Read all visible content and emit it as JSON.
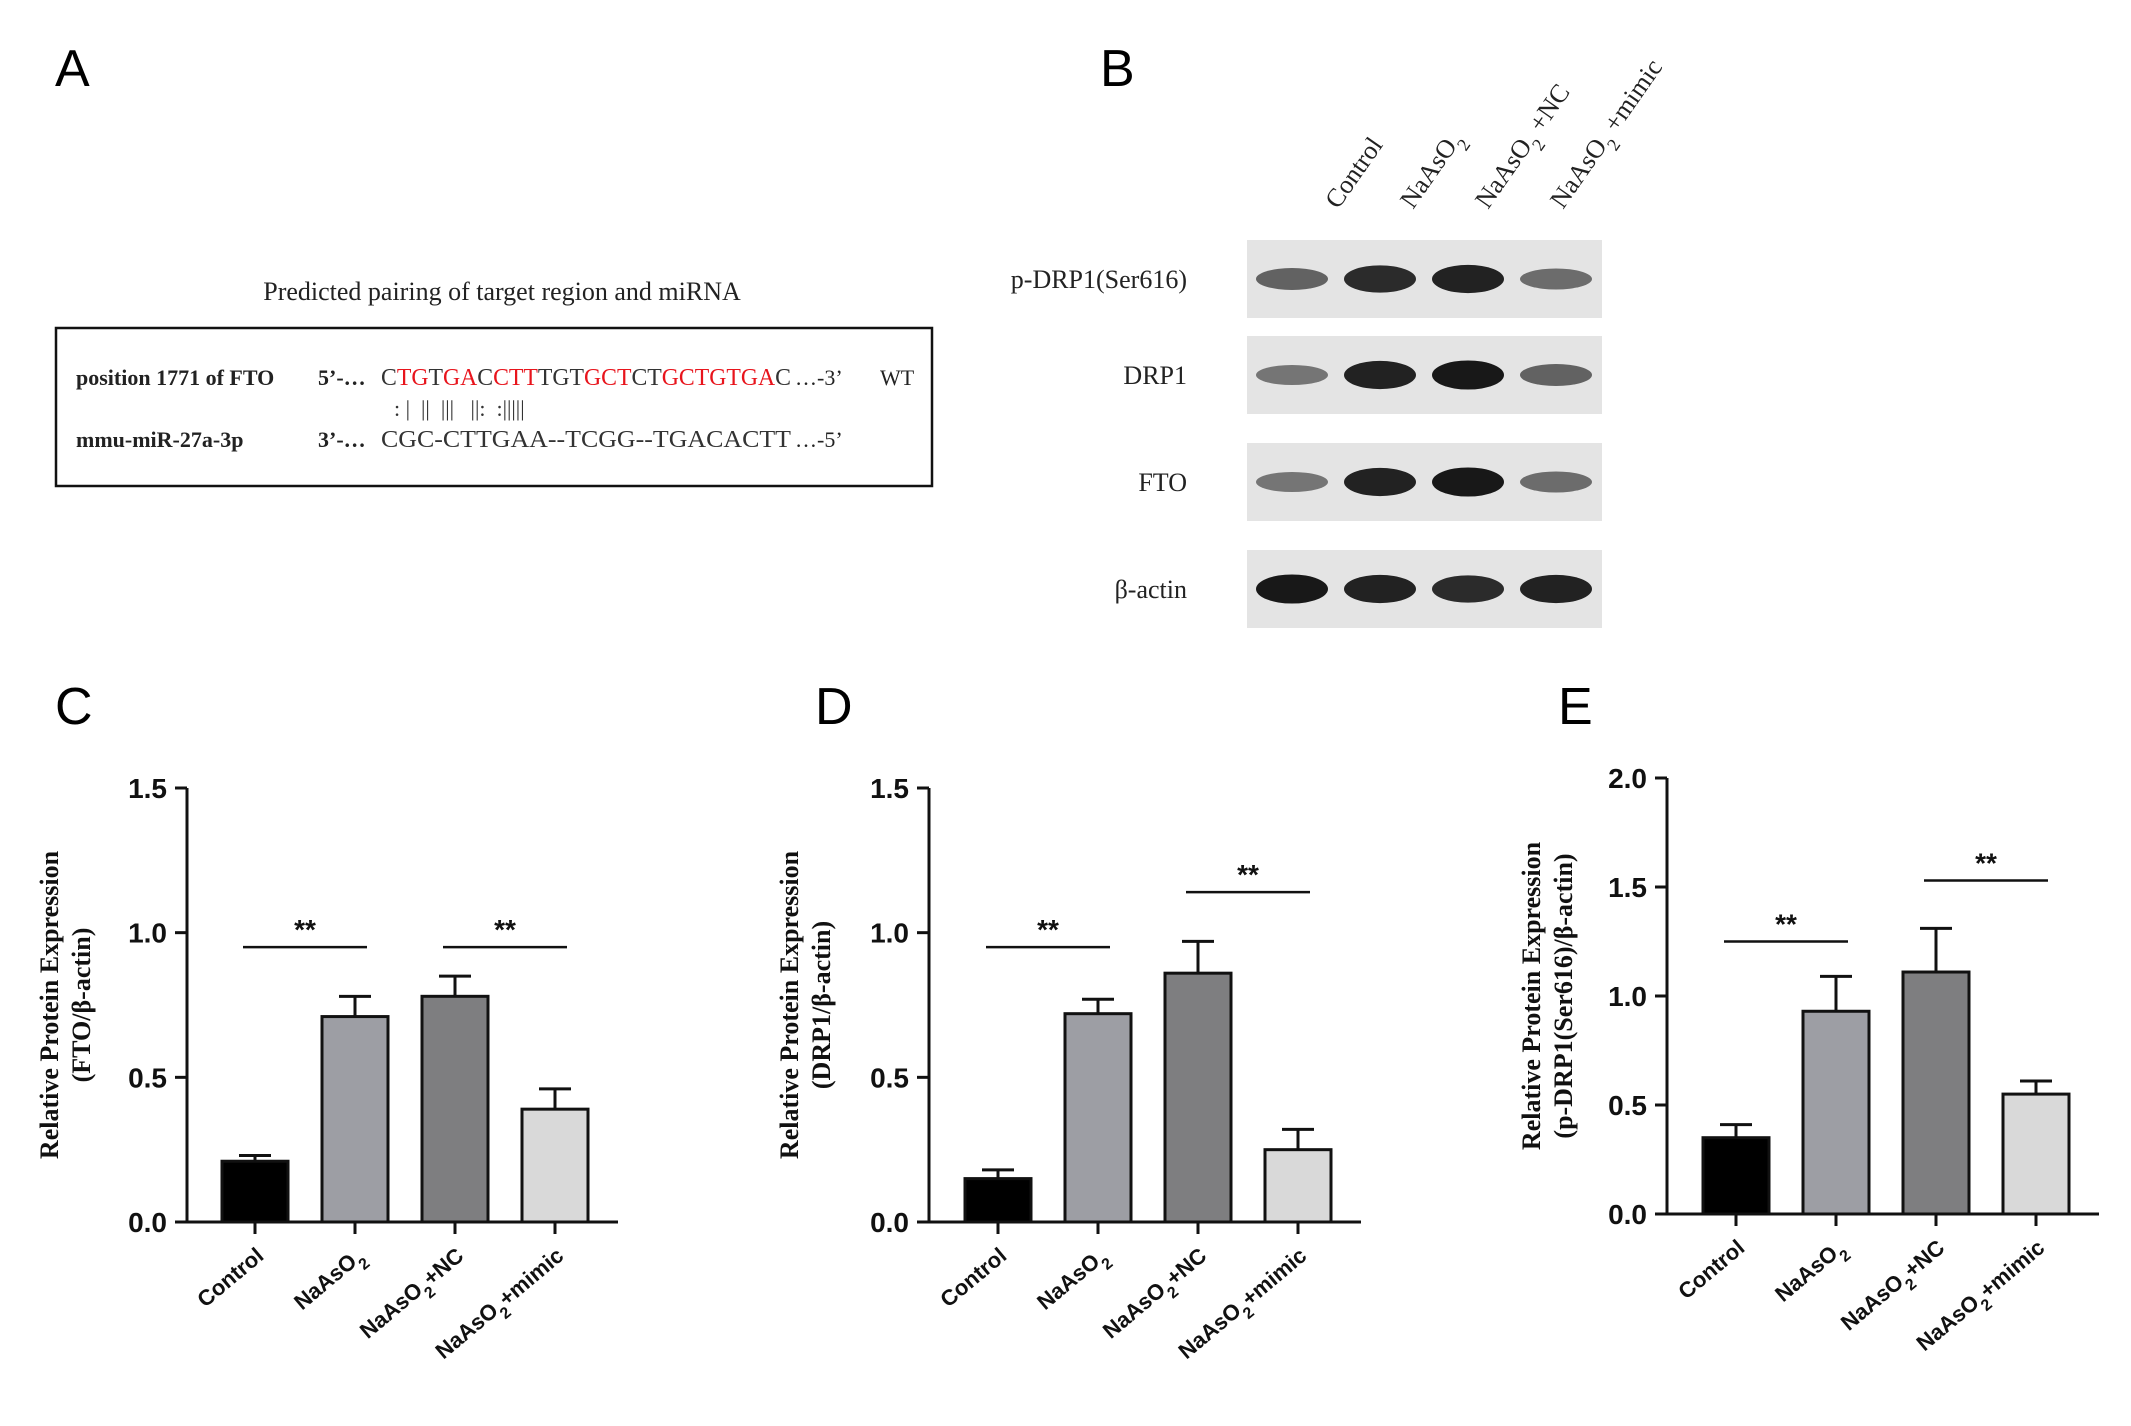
{
  "panels": {
    "A": "A",
    "B": "B",
    "C": "C",
    "D": "D",
    "E": "E"
  },
  "panel_a": {
    "title": "Predicted pairing of target region and miRNA",
    "target_label": "position 1771 of FTO",
    "mirna_label": "mmu-miR-27a-3p",
    "target_prefix": "5’-…",
    "target_suffix": "…-3’",
    "mirna_prefix": "3’-…",
    "mirna_suffix": "…-5’",
    "wt_label": "WT",
    "target_segments": [
      {
        "text": "C",
        "red": false
      },
      {
        "text": "TG",
        "red": true
      },
      {
        "text": "T",
        "red": false
      },
      {
        "text": "GA",
        "red": true
      },
      {
        "text": "C",
        "red": false
      },
      {
        "text": "CTT",
        "red": true
      },
      {
        "text": "TGT",
        "red": false
      },
      {
        "text": "GCT",
        "red": true
      },
      {
        "text": "CT",
        "red": false
      },
      {
        "text": "GCTGTGA",
        "red": true
      },
      {
        "text": "C",
        "red": false
      }
    ],
    "pairing": ": |  ||  |||   ||:  :|||||",
    "mirna_sequence": "CGC-CTTGAA--TCGG--TGACACTT"
  },
  "panel_b": {
    "lanes": [
      "Control",
      "NaAsO",
      "NaAsO",
      "NaAsO"
    ],
    "lane_subscripts": [
      "",
      "2",
      "2",
      "2"
    ],
    "lane_suffixes": [
      "",
      "",
      " +NC",
      " +mimic"
    ],
    "blots": [
      {
        "label": "p-DRP1(Ser616)",
        "intensity": [
          0.55,
          0.85,
          0.9,
          0.5
        ]
      },
      {
        "label": "DRP1",
        "intensity": [
          0.45,
          0.9,
          0.95,
          0.55
        ]
      },
      {
        "label": "FTO",
        "intensity": [
          0.45,
          0.9,
          0.95,
          0.5
        ]
      },
      {
        "label": "β-actin",
        "intensity": [
          0.95,
          0.9,
          0.85,
          0.9
        ]
      }
    ]
  },
  "colors": {
    "control": "#000000",
    "naaso2": "#9d9ea4",
    "naaso2_nc": "#7e7e80",
    "naaso2_mimic": "#d9d9d9",
    "red_seq": "#e8141c"
  },
  "chart_data": [
    {
      "type": "bar",
      "panel": "C",
      "categories": [
        "Control",
        "NaAsO2",
        "NaAsO2+NC",
        "NaAsO2+mimic"
      ],
      "values": [
        0.21,
        0.71,
        0.78,
        0.39
      ],
      "errors": [
        0.02,
        0.07,
        0.07,
        0.07
      ],
      "ylabel_line1": "Relative Protein Expression",
      "ylabel_line2": "(FTO/β-actin)",
      "ylim": [
        0,
        1.5
      ],
      "yticks": [
        "0.0",
        "0.5",
        "1.0",
        "1.5"
      ],
      "yticks_values": [
        0,
        0.5,
        1.0,
        1.5
      ],
      "significance": [
        {
          "pair": [
            0,
            1
          ],
          "label": "**",
          "y": 0.95
        },
        {
          "pair": [
            2,
            3
          ],
          "label": "**",
          "y": 0.95
        }
      ]
    },
    {
      "type": "bar",
      "panel": "D",
      "categories": [
        "Control",
        "NaAsO2",
        "NaAsO2+NC",
        "NaAsO2+mimic"
      ],
      "values": [
        0.15,
        0.72,
        0.86,
        0.25
      ],
      "errors": [
        0.03,
        0.05,
        0.11,
        0.07
      ],
      "ylabel_line1": "Relative Protein Expression",
      "ylabel_line2": "(DRP1/β-actin)",
      "ylim": [
        0,
        1.5
      ],
      "yticks": [
        "0.0",
        "0.5",
        "1.0",
        "1.5"
      ],
      "yticks_values": [
        0,
        0.5,
        1.0,
        1.5
      ],
      "significance": [
        {
          "pair": [
            0,
            1
          ],
          "label": "**",
          "y": 0.95
        },
        {
          "pair": [
            2,
            3
          ],
          "label": "**",
          "y": 1.14
        }
      ]
    },
    {
      "type": "bar",
      "panel": "E",
      "categories": [
        "Control",
        "NaAsO2",
        "NaAsO2+NC",
        "NaAsO2+mimic"
      ],
      "values": [
        0.35,
        0.93,
        1.11,
        0.55
      ],
      "errors": [
        0.06,
        0.16,
        0.2,
        0.06
      ],
      "ylabel_line1": "Relative Protein Expression",
      "ylabel_line2": "(p-DRP1(Ser616)/β-actin)",
      "ylim": [
        0,
        2.0
      ],
      "yticks": [
        "0.0",
        "0.5",
        "1.0",
        "1.5",
        "2.0"
      ],
      "yticks_values": [
        0,
        0.5,
        1.0,
        1.5,
        2.0
      ],
      "significance": [
        {
          "pair": [
            0,
            1
          ],
          "label": "**",
          "y": 1.25
        },
        {
          "pair": [
            2,
            3
          ],
          "label": "**",
          "y": 1.53
        }
      ]
    }
  ]
}
